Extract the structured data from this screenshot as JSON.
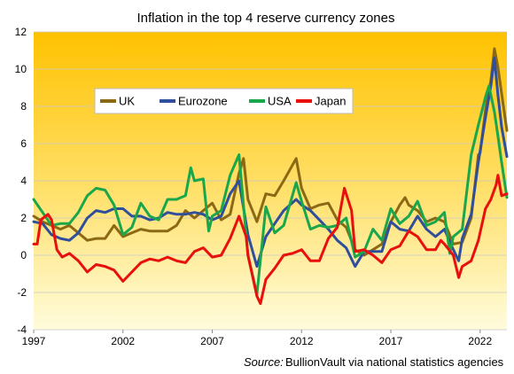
{
  "chart_data": {
    "type": "line",
    "title": "Inflation in the top 4 reserve currency zones",
    "xlabel": "",
    "ylabel": "",
    "xlim": [
      1997,
      2023.5
    ],
    "ylim": [
      -4,
      12
    ],
    "grid": "horizontal",
    "legend_placement": "upper-left, boxed",
    "x_ticks": [
      "1997",
      "2002",
      "2007",
      "2012",
      "2017",
      "2022"
    ],
    "y_ticks": [
      "-4",
      "-2",
      "0",
      "2",
      "4",
      "6",
      "8",
      "10",
      "12"
    ],
    "source_label": "Source:",
    "source_text": "BullionVault via national statistics agencies",
    "series": [
      {
        "name": "UK",
        "color": "#8B6914",
        "points": [
          [
            1997.0,
            2.1
          ],
          [
            1997.5,
            1.8
          ],
          [
            1998.0,
            1.6
          ],
          [
            1998.5,
            1.4
          ],
          [
            1999.0,
            1.6
          ],
          [
            1999.5,
            1.2
          ],
          [
            2000.0,
            0.8
          ],
          [
            2000.5,
            0.9
          ],
          [
            2001.0,
            0.9
          ],
          [
            2001.5,
            1.6
          ],
          [
            2002.0,
            1.0
          ],
          [
            2002.5,
            1.2
          ],
          [
            2003.0,
            1.4
          ],
          [
            2003.5,
            1.3
          ],
          [
            2004.0,
            1.3
          ],
          [
            2004.5,
            1.3
          ],
          [
            2005.0,
            1.6
          ],
          [
            2005.5,
            2.4
          ],
          [
            2006.0,
            2.0
          ],
          [
            2006.5,
            2.4
          ],
          [
            2007.0,
            2.8
          ],
          [
            2007.5,
            1.9
          ],
          [
            2008.0,
            2.2
          ],
          [
            2008.5,
            4.4
          ],
          [
            2008.75,
            5.2
          ],
          [
            2009.0,
            3.0
          ],
          [
            2009.5,
            1.8
          ],
          [
            2010.0,
            3.3
          ],
          [
            2010.5,
            3.2
          ],
          [
            2011.0,
            4.0
          ],
          [
            2011.7,
            5.2
          ],
          [
            2012.0,
            3.6
          ],
          [
            2012.5,
            2.5
          ],
          [
            2013.0,
            2.7
          ],
          [
            2013.5,
            2.8
          ],
          [
            2014.0,
            1.9
          ],
          [
            2014.5,
            1.5
          ],
          [
            2015.0,
            0.3
          ],
          [
            2015.5,
            0.0
          ],
          [
            2016.0,
            0.3
          ],
          [
            2016.5,
            0.6
          ],
          [
            2017.0,
            1.8
          ],
          [
            2017.5,
            2.7
          ],
          [
            2017.8,
            3.1
          ],
          [
            2018.0,
            2.7
          ],
          [
            2018.5,
            2.4
          ],
          [
            2019.0,
            1.8
          ],
          [
            2019.5,
            2.0
          ],
          [
            2020.0,
            1.8
          ],
          [
            2020.5,
            0.6
          ],
          [
            2021.0,
            0.7
          ],
          [
            2021.5,
            2.0
          ],
          [
            2021.9,
            5.4
          ],
          [
            2022.0,
            5.5
          ],
          [
            2022.3,
            7.8
          ],
          [
            2022.6,
            9.4
          ],
          [
            2022.8,
            11.1
          ],
          [
            2023.0,
            10.1
          ],
          [
            2023.2,
            8.7
          ],
          [
            2023.5,
            6.7
          ]
        ]
      },
      {
        "name": "Eurozone",
        "color": "#2F4E9C",
        "points": [
          [
            1997.0,
            1.8
          ],
          [
            1997.5,
            1.7
          ],
          [
            1998.0,
            1.1
          ],
          [
            1998.5,
            0.9
          ],
          [
            1999.0,
            0.8
          ],
          [
            1999.5,
            1.2
          ],
          [
            2000.0,
            2.0
          ],
          [
            2000.5,
            2.4
          ],
          [
            2001.0,
            2.3
          ],
          [
            2001.5,
            2.5
          ],
          [
            2002.0,
            2.5
          ],
          [
            2002.5,
            2.1
          ],
          [
            2003.0,
            2.1
          ],
          [
            2003.5,
            1.9
          ],
          [
            2004.0,
            2.0
          ],
          [
            2004.5,
            2.3
          ],
          [
            2005.0,
            2.2
          ],
          [
            2005.5,
            2.2
          ],
          [
            2006.0,
            2.3
          ],
          [
            2006.5,
            2.2
          ],
          [
            2007.0,
            1.9
          ],
          [
            2007.5,
            2.1
          ],
          [
            2008.0,
            3.3
          ],
          [
            2008.5,
            4.0
          ],
          [
            2009.0,
            1.1
          ],
          [
            2009.5,
            -0.6
          ],
          [
            2010.0,
            1.0
          ],
          [
            2010.5,
            1.7
          ],
          [
            2011.0,
            2.4
          ],
          [
            2011.7,
            3.0
          ],
          [
            2012.0,
            2.7
          ],
          [
            2012.5,
            2.4
          ],
          [
            2013.0,
            1.9
          ],
          [
            2013.5,
            1.4
          ],
          [
            2014.0,
            0.8
          ],
          [
            2014.5,
            0.4
          ],
          [
            2015.0,
            -0.6
          ],
          [
            2015.5,
            0.2
          ],
          [
            2016.0,
            0.2
          ],
          [
            2016.5,
            0.2
          ],
          [
            2017.0,
            1.8
          ],
          [
            2017.5,
            1.4
          ],
          [
            2018.0,
            1.3
          ],
          [
            2018.5,
            2.1
          ],
          [
            2019.0,
            1.4
          ],
          [
            2019.5,
            1.0
          ],
          [
            2020.0,
            1.4
          ],
          [
            2020.5,
            0.3
          ],
          [
            2020.8,
            -0.3
          ],
          [
            2021.0,
            0.9
          ],
          [
            2021.5,
            2.2
          ],
          [
            2021.9,
            5.0
          ],
          [
            2022.3,
            7.4
          ],
          [
            2022.6,
            9.1
          ],
          [
            2022.8,
            10.6
          ],
          [
            2023.0,
            8.6
          ],
          [
            2023.2,
            6.9
          ],
          [
            2023.5,
            5.3
          ]
        ]
      },
      {
        "name": "USA",
        "color": "#1AA64A",
        "points": [
          [
            1997.0,
            3.0
          ],
          [
            1997.5,
            2.3
          ],
          [
            1998.0,
            1.6
          ],
          [
            1998.5,
            1.7
          ],
          [
            1999.0,
            1.7
          ],
          [
            1999.5,
            2.3
          ],
          [
            2000.0,
            3.2
          ],
          [
            2000.5,
            3.6
          ],
          [
            2001.0,
            3.5
          ],
          [
            2001.5,
            2.7
          ],
          [
            2002.0,
            1.1
          ],
          [
            2002.5,
            1.5
          ],
          [
            2003.0,
            2.8
          ],
          [
            2003.5,
            2.1
          ],
          [
            2004.0,
            1.9
          ],
          [
            2004.5,
            3.0
          ],
          [
            2005.0,
            3.0
          ],
          [
            2005.5,
            3.2
          ],
          [
            2005.8,
            4.7
          ],
          [
            2006.0,
            4.0
          ],
          [
            2006.5,
            4.1
          ],
          [
            2006.8,
            1.3
          ],
          [
            2007.0,
            2.1
          ],
          [
            2007.5,
            2.4
          ],
          [
            2008.0,
            4.3
          ],
          [
            2008.5,
            5.4
          ],
          [
            2009.0,
            0.0
          ],
          [
            2009.5,
            -2.1
          ],
          [
            2010.0,
            2.6
          ],
          [
            2010.5,
            1.2
          ],
          [
            2011.0,
            1.6
          ],
          [
            2011.7,
            3.9
          ],
          [
            2012.0,
            2.9
          ],
          [
            2012.5,
            1.4
          ],
          [
            2013.0,
            1.6
          ],
          [
            2013.5,
            1.5
          ],
          [
            2014.0,
            1.6
          ],
          [
            2014.5,
            2.0
          ],
          [
            2015.0,
            -0.1
          ],
          [
            2015.5,
            0.2
          ],
          [
            2016.0,
            1.4
          ],
          [
            2016.5,
            0.8
          ],
          [
            2017.0,
            2.5
          ],
          [
            2017.5,
            1.7
          ],
          [
            2018.0,
            2.1
          ],
          [
            2018.5,
            2.9
          ],
          [
            2019.0,
            1.6
          ],
          [
            2019.5,
            1.8
          ],
          [
            2020.0,
            2.3
          ],
          [
            2020.3,
            0.1
          ],
          [
            2020.5,
            1.0
          ],
          [
            2021.0,
            1.4
          ],
          [
            2021.5,
            5.4
          ],
          [
            2021.9,
            7.0
          ],
          [
            2022.3,
            8.5
          ],
          [
            2022.5,
            9.1
          ],
          [
            2022.8,
            7.7
          ],
          [
            2023.0,
            6.4
          ],
          [
            2023.2,
            5.0
          ],
          [
            2023.5,
            3.1
          ]
        ]
      },
      {
        "name": "Japan",
        "color": "#E8100C",
        "points": [
          [
            1997.0,
            0.6
          ],
          [
            1997.2,
            0.6
          ],
          [
            1997.4,
            1.9
          ],
          [
            1997.8,
            2.2
          ],
          [
            1998.0,
            1.9
          ],
          [
            1998.3,
            0.3
          ],
          [
            1998.6,
            -0.1
          ],
          [
            1999.0,
            0.1
          ],
          [
            1999.5,
            -0.3
          ],
          [
            2000.0,
            -0.9
          ],
          [
            2000.5,
            -0.5
          ],
          [
            2001.0,
            -0.6
          ],
          [
            2001.5,
            -0.8
          ],
          [
            2002.0,
            -1.4
          ],
          [
            2002.5,
            -0.9
          ],
          [
            2003.0,
            -0.4
          ],
          [
            2003.5,
            -0.2
          ],
          [
            2004.0,
            -0.3
          ],
          [
            2004.5,
            -0.1
          ],
          [
            2005.0,
            -0.3
          ],
          [
            2005.5,
            -0.4
          ],
          [
            2006.0,
            0.2
          ],
          [
            2006.5,
            0.4
          ],
          [
            2007.0,
            -0.1
          ],
          [
            2007.5,
            0.0
          ],
          [
            2008.0,
            0.9
          ],
          [
            2008.5,
            2.1
          ],
          [
            2008.9,
            1.0
          ],
          [
            2009.0,
            0.0
          ],
          [
            2009.5,
            -2.2
          ],
          [
            2009.7,
            -2.6
          ],
          [
            2010.0,
            -1.3
          ],
          [
            2010.5,
            -0.7
          ],
          [
            2011.0,
            0.0
          ],
          [
            2011.5,
            0.1
          ],
          [
            2012.0,
            0.3
          ],
          [
            2012.5,
            -0.3
          ],
          [
            2013.0,
            -0.3
          ],
          [
            2013.5,
            0.9
          ],
          [
            2014.0,
            1.5
          ],
          [
            2014.4,
            3.6
          ],
          [
            2014.8,
            2.4
          ],
          [
            2015.0,
            0.2
          ],
          [
            2015.5,
            0.3
          ],
          [
            2016.0,
            0.0
          ],
          [
            2016.5,
            -0.4
          ],
          [
            2017.0,
            0.3
          ],
          [
            2017.5,
            0.5
          ],
          [
            2018.0,
            1.3
          ],
          [
            2018.5,
            1.0
          ],
          [
            2019.0,
            0.3
          ],
          [
            2019.5,
            0.3
          ],
          [
            2019.8,
            0.8
          ],
          [
            2020.0,
            0.6
          ],
          [
            2020.5,
            0.0
          ],
          [
            2020.8,
            -1.2
          ],
          [
            2021.0,
            -0.6
          ],
          [
            2021.5,
            -0.3
          ],
          [
            2021.9,
            0.8
          ],
          [
            2022.3,
            2.5
          ],
          [
            2022.6,
            3.0
          ],
          [
            2022.9,
            3.8
          ],
          [
            2023.0,
            4.3
          ],
          [
            2023.2,
            3.2
          ],
          [
            2023.5,
            3.3
          ]
        ]
      }
    ]
  }
}
